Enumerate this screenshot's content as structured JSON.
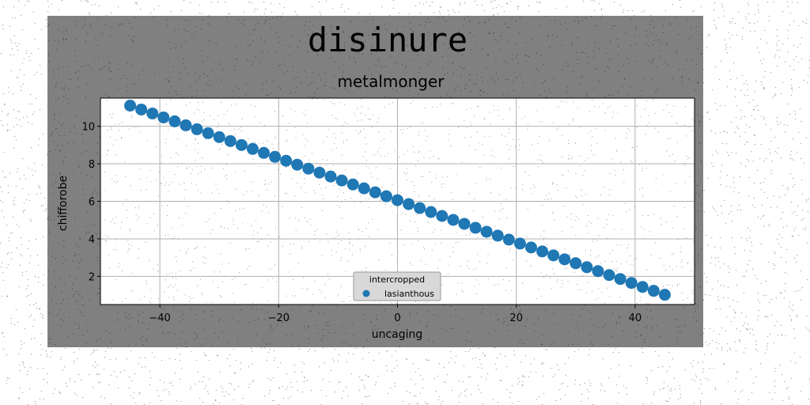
{
  "chart_data": {
    "type": "scatter",
    "title": "disinure",
    "subtitle": "metalmonger",
    "xlabel": "uncaging",
    "ylabel": "chifforobe",
    "xlim": [
      -50,
      50
    ],
    "ylim": [
      0.5,
      11.5
    ],
    "xticks": [
      -40,
      -20,
      0,
      20,
      40
    ],
    "xtick_labels": [
      "−40",
      "−20",
      "0",
      "20",
      "40"
    ],
    "yticks": [
      2,
      4,
      6,
      8,
      10
    ],
    "ytick_labels": [
      "2",
      "4",
      "6",
      "8",
      "10"
    ],
    "grid": true,
    "legend": {
      "title": "intercropped",
      "placement": "lower-center"
    },
    "series": [
      {
        "name": "lasianthous",
        "color": "#1f77b4",
        "x": [
          -45.0,
          -43.13,
          -41.25,
          -39.38,
          -37.5,
          -35.63,
          -33.75,
          -31.88,
          -30.0,
          -28.13,
          -26.25,
          -24.38,
          -22.5,
          -20.63,
          -18.75,
          -16.88,
          -15.0,
          -13.13,
          -11.25,
          -9.38,
          -7.5,
          -5.63,
          -3.75,
          -1.88,
          0.0,
          1.88,
          3.75,
          5.63,
          7.5,
          9.38,
          11.25,
          13.13,
          15.0,
          16.88,
          18.75,
          20.63,
          22.5,
          24.38,
          26.25,
          28.13,
          30.0,
          31.88,
          33.75,
          35.63,
          37.5,
          39.38,
          41.25,
          43.13,
          45.0
        ],
        "y": [
          11.1,
          10.89,
          10.68,
          10.47,
          10.26,
          10.05,
          9.84,
          9.63,
          9.42,
          9.21,
          9.0,
          8.79,
          8.58,
          8.37,
          8.16,
          7.95,
          7.74,
          7.53,
          7.32,
          7.11,
          6.9,
          6.69,
          6.48,
          6.27,
          6.06,
          5.85,
          5.64,
          5.43,
          5.22,
          5.01,
          4.8,
          4.59,
          4.38,
          4.17,
          3.96,
          3.75,
          3.54,
          3.33,
          3.12,
          2.91,
          2.7,
          2.49,
          2.28,
          2.07,
          1.86,
          1.65,
          1.44,
          1.23,
          1.02
        ]
      }
    ]
  },
  "colors": {
    "figure_background": "#808080",
    "plot_background": "#ffffff",
    "marker": "#1f77b4",
    "grid": "#b0b0b0",
    "legend_background": "#d8d8d8"
  }
}
